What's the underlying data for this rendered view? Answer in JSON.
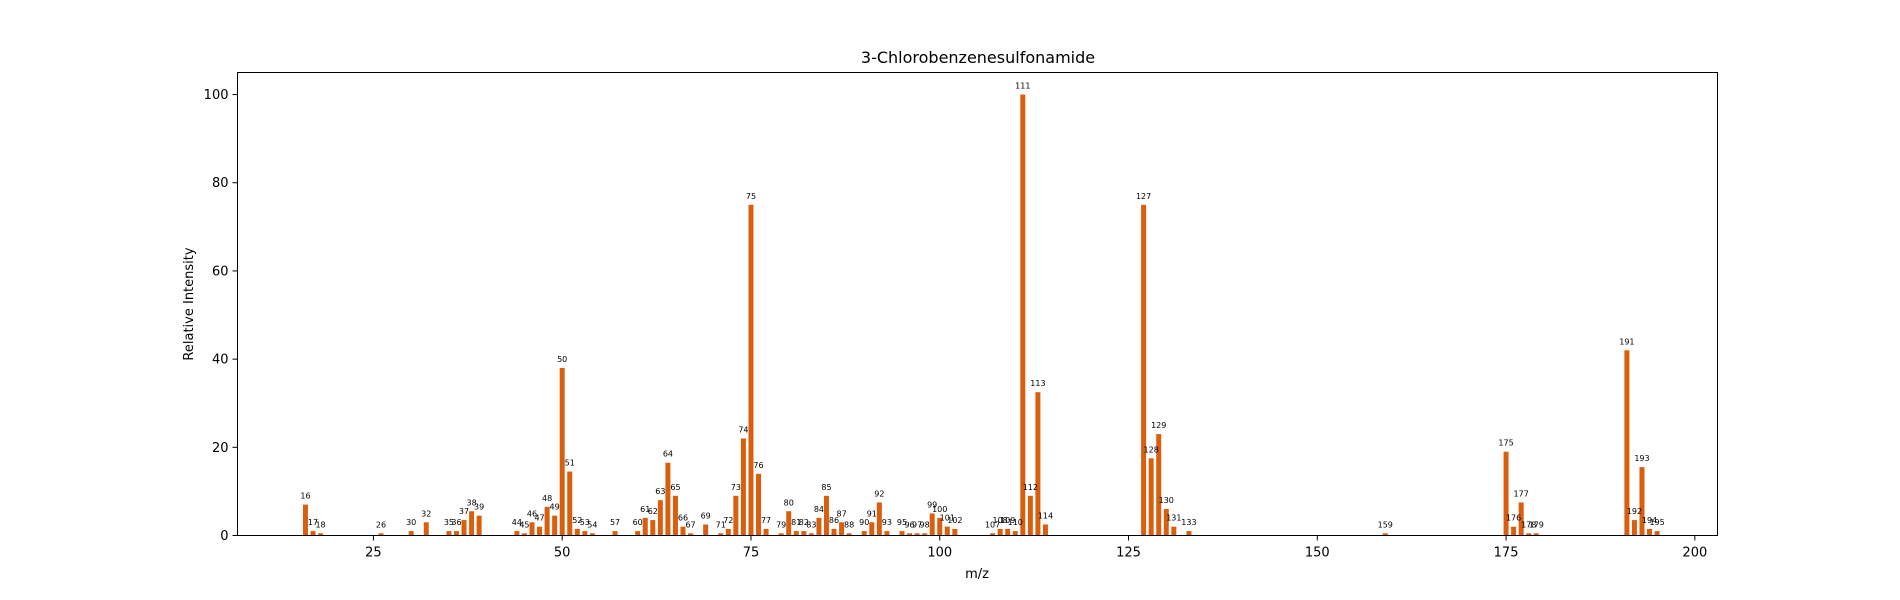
{
  "chart_data": {
    "type": "bar",
    "title": "3-Chlorobenzenesulfonamide",
    "xlabel": "m/z",
    "ylabel": "Relative Intensity",
    "xlim": [
      7,
      203
    ],
    "ylim": [
      0,
      105
    ],
    "xticks": [
      25,
      50,
      75,
      100,
      125,
      150,
      175,
      200
    ],
    "yticks": [
      0,
      20,
      40,
      60,
      80,
      100
    ],
    "grid": false,
    "bar_color": "#d95f0e",
    "x": [
      16,
      17,
      18,
      26,
      30,
      32,
      35,
      36,
      37,
      38,
      39,
      44,
      45,
      46,
      47,
      48,
      49,
      50,
      51,
      52,
      53,
      54,
      57,
      60,
      61,
      62,
      63,
      64,
      65,
      66,
      67,
      69,
      71,
      72,
      73,
      74,
      75,
      76,
      77,
      79,
      80,
      81,
      82,
      83,
      84,
      85,
      86,
      87,
      88,
      90,
      91,
      92,
      93,
      95,
      96,
      97,
      98,
      99,
      100,
      101,
      102,
      107,
      108,
      109,
      110,
      111,
      112,
      113,
      114,
      127,
      128,
      129,
      130,
      131,
      133,
      159,
      175,
      176,
      177,
      178,
      179,
      191,
      192,
      193,
      194,
      195
    ],
    "values": [
      7,
      1,
      0.5,
      0.5,
      1,
      3,
      1,
      1,
      3.5,
      5.5,
      4.5,
      1,
      0.5,
      3,
      2,
      6.5,
      4.5,
      38,
      14.5,
      1.5,
      1,
      0.5,
      1,
      1,
      4,
      3.5,
      8,
      16.5,
      9,
      2,
      0.5,
      2.5,
      0.5,
      1.5,
      9,
      22,
      75,
      14,
      1.5,
      0.5,
      5.5,
      1,
      1,
      0.5,
      4,
      9,
      1.5,
      3,
      0.5,
      1,
      3,
      7.5,
      1,
      1,
      0.5,
      0.5,
      0.5,
      5,
      4,
      2,
      1.5,
      0.5,
      1.5,
      1.5,
      1,
      100,
      9,
      32.5,
      2.5,
      75,
      17.5,
      23,
      6,
      2,
      1,
      0.5,
      19,
      2,
      7.5,
      0.5,
      0.5,
      42,
      3.5,
      15.5,
      1.5,
      1
    ]
  }
}
